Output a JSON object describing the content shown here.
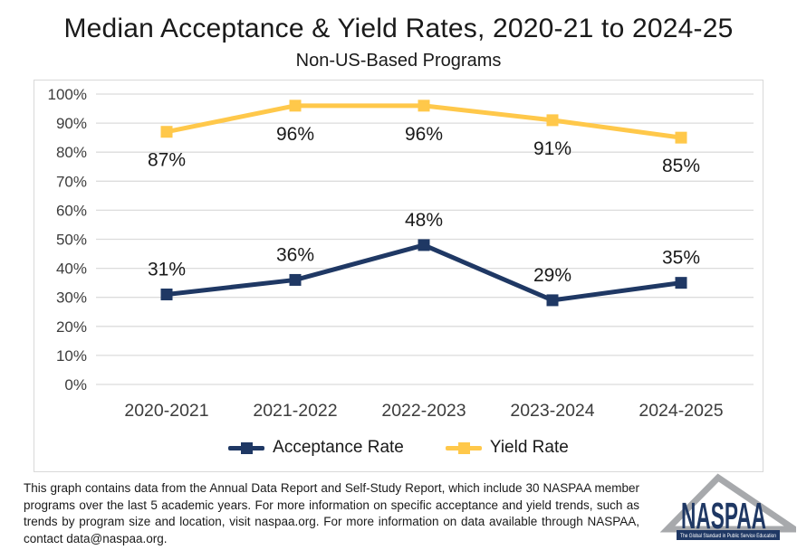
{
  "title": "Median Acceptance & Yield Rates, 2020-21 to 2024-25",
  "subtitle": "Non-US-Based Programs",
  "chart_data": {
    "type": "line",
    "categories": [
      "2020-2021",
      "2021-2022",
      "2022-2023",
      "2023-2024",
      "2024-2025"
    ],
    "series": [
      {
        "name": "Acceptance Rate",
        "values": [
          31,
          36,
          48,
          29,
          35
        ],
        "color": "#1F3864",
        "marker": "square",
        "label_position": "above"
      },
      {
        "name": "Yield Rate",
        "values": [
          87,
          96,
          96,
          91,
          85
        ],
        "color": "#FFC84A",
        "marker": "square",
        "label_position": "below"
      }
    ],
    "xlabel": "",
    "ylabel": "",
    "ylim": [
      0,
      100
    ],
    "ytick_step": 10,
    "ytick_format": "percent",
    "grid": true,
    "legend_position": "bottom",
    "data_labels": true
  },
  "footer": {
    "text": "This graph contains data from the Annual Data Report and Self-Study Report, which include 30 NASPAA member programs over the last 5 academic years. For more information on specific acceptance and yield trends, such as trends by program size and location, visit naspaa.org. For more information on data available through NASPAA, contact data@naspaa.org."
  },
  "logo": {
    "name": "NASPAA",
    "tagline": "The Global Standard in Public Service Education",
    "text_color": "#1F3864",
    "triangle_color": "#A7A9AC",
    "bar_color": "#1F3864"
  },
  "colors": {
    "grid": "#DCDCDC",
    "axis_text": "#3d3d3d",
    "data_label": "#1a1a1a",
    "panel_border": "#D9D9D9",
    "background": "#FFFFFF"
  }
}
